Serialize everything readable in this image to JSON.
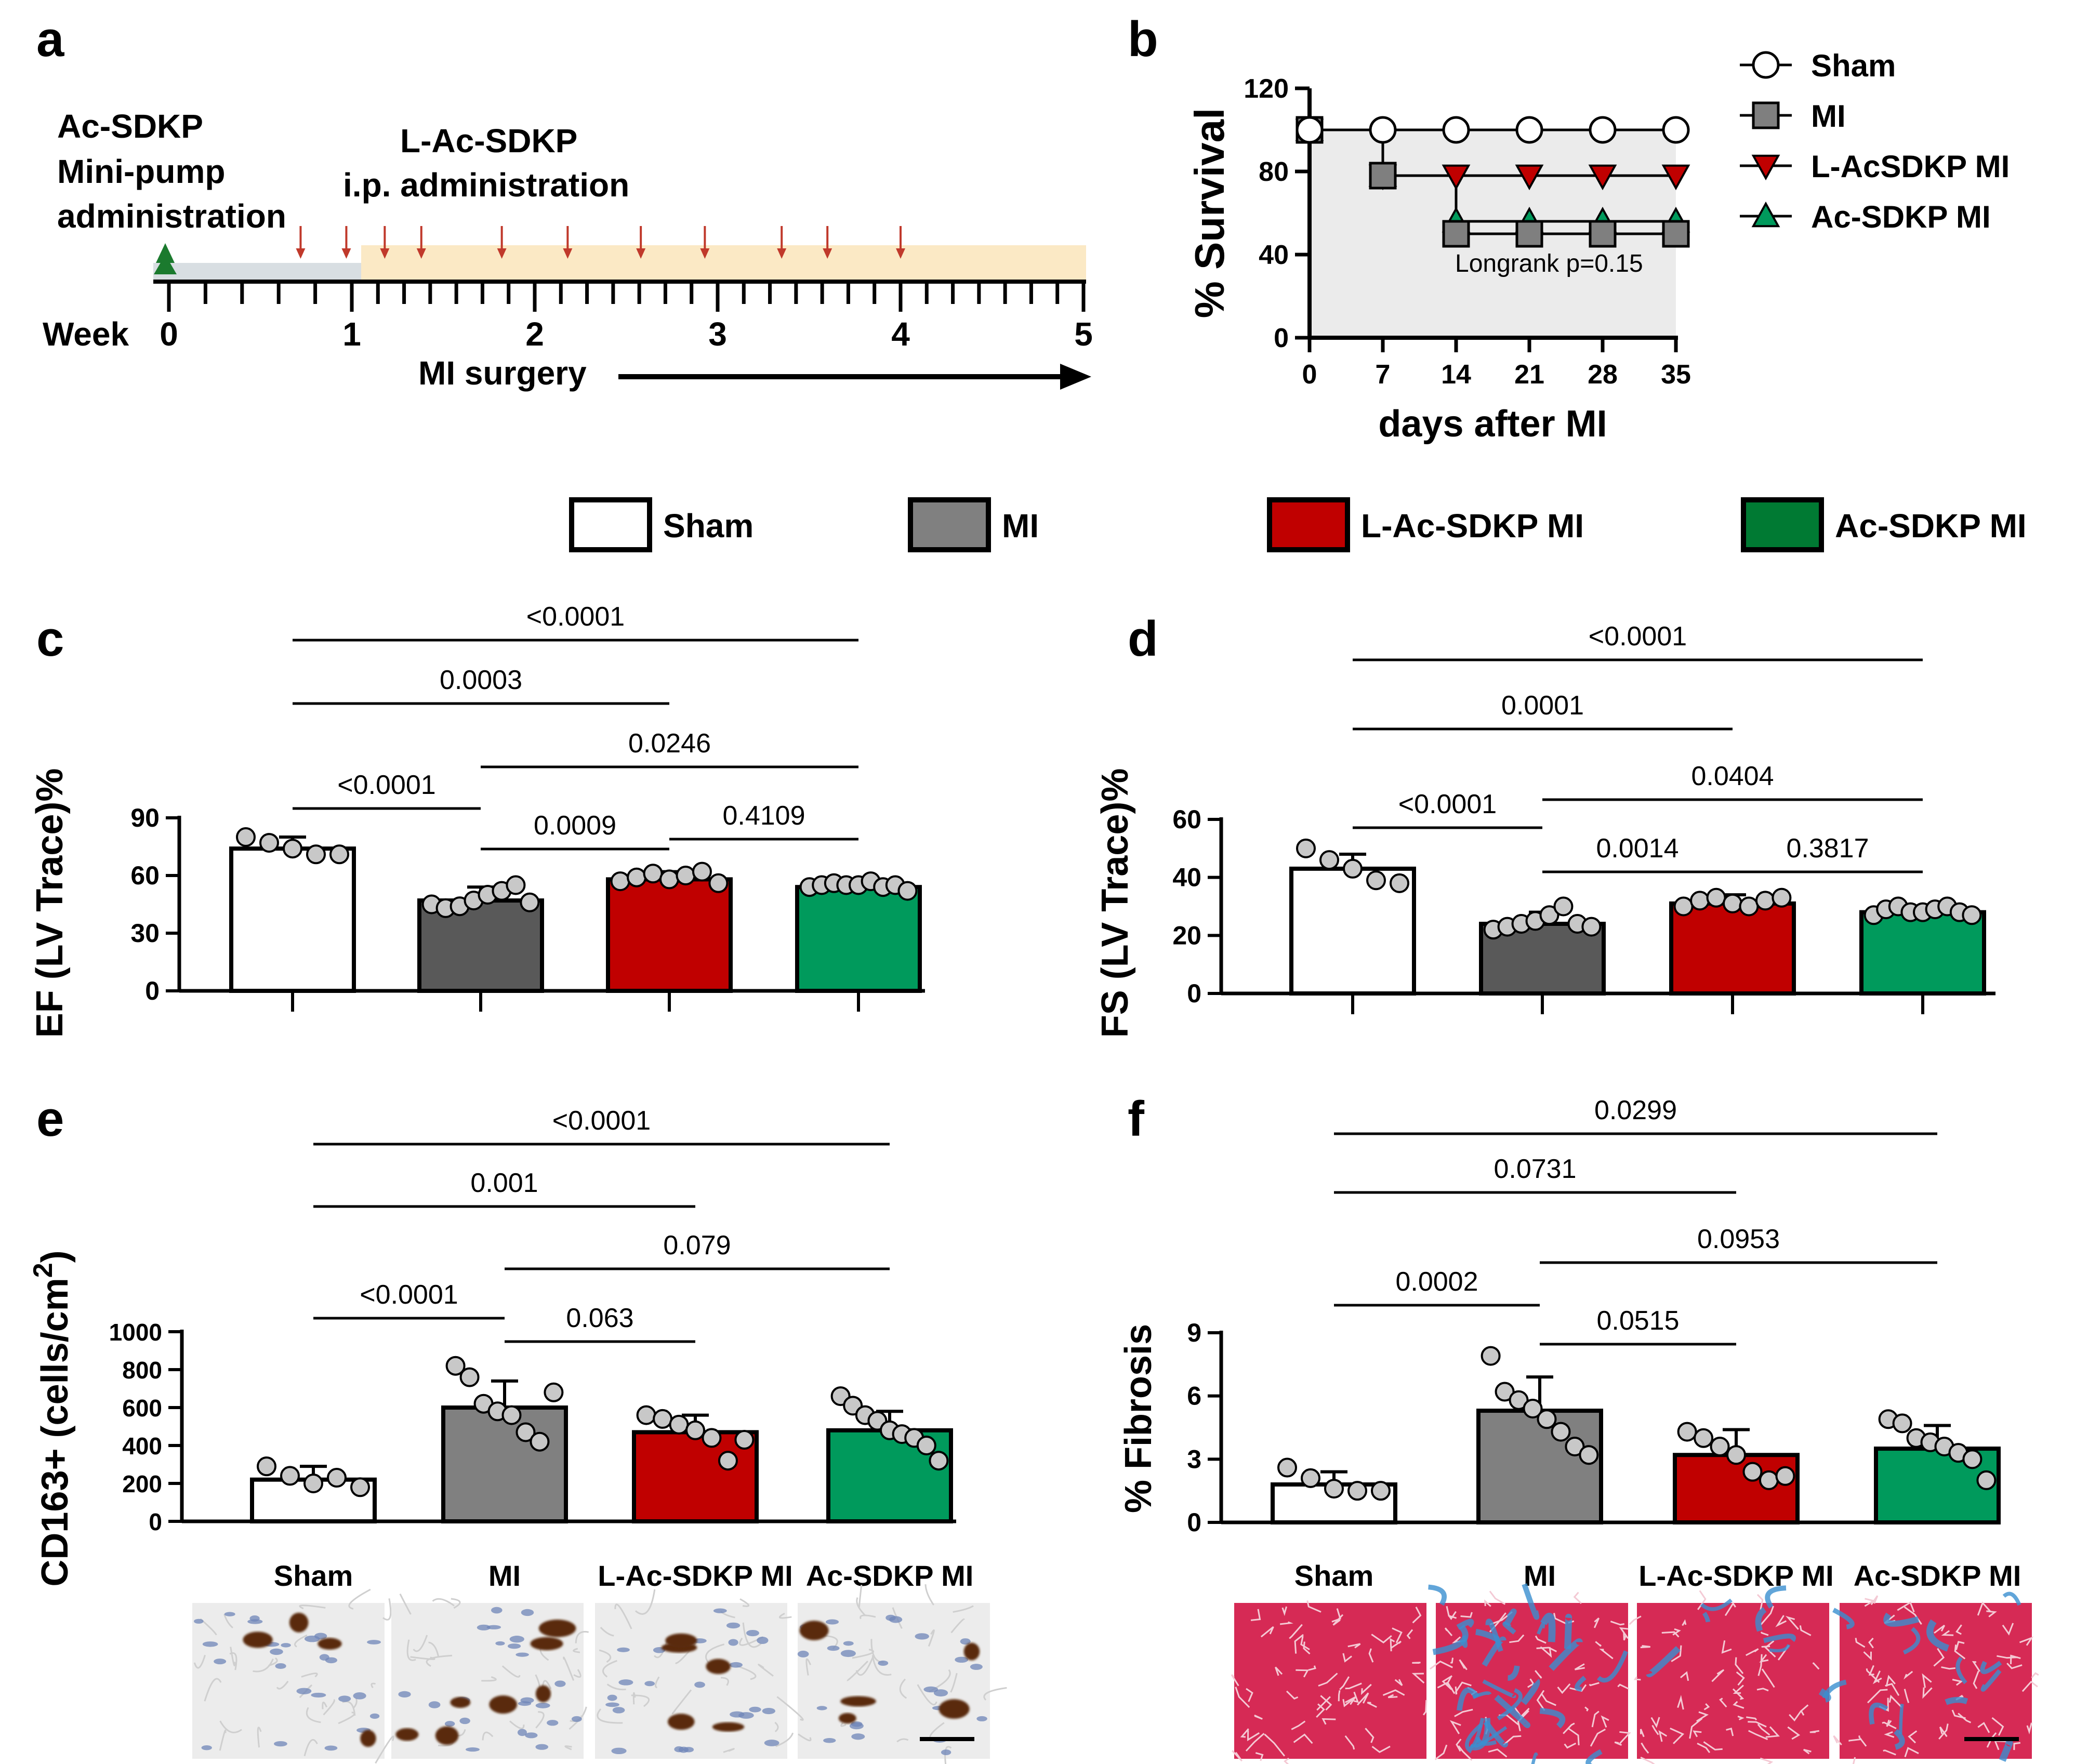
{
  "panel_letters": [
    "a",
    "b",
    "c",
    "d",
    "e",
    "f"
  ],
  "colors": {
    "sham": "#ffffff",
    "mi_c": "#595959",
    "mi_e": "#808080",
    "lac": "#c00000",
    "ac": "#009a5c",
    "ac_legend": "#007a33",
    "timeline_track": "#d8dee2",
    "timeline_ip": "#fbe9c5",
    "arrow": "#c0392b",
    "pump": "#1b7a2e"
  },
  "legend": {
    "items": [
      {
        "key": "sham",
        "label": "Sham"
      },
      {
        "key": "mi",
        "label": "MI"
      },
      {
        "key": "lac",
        "label": "L-Ac-SDKP MI"
      },
      {
        "key": "ac",
        "label": "Ac-SDKP MI"
      }
    ]
  },
  "timeline": {
    "pump_label": [
      "Ac-SDKP",
      "Mini-pump",
      "administration"
    ],
    "ip_label": [
      "L-Ac-SDKP",
      "i.p. administration"
    ],
    "week_label": "Week",
    "weeks": [
      "0",
      "1",
      "2",
      "3",
      "4",
      "5"
    ],
    "surgery_label": "MI surgery",
    "injection_weeks": [
      0.72,
      0.97,
      1.18,
      1.38,
      1.82,
      2.18,
      2.58,
      2.93,
      3.35,
      3.6,
      4.0
    ]
  },
  "chart_data": [
    {
      "panel": "b",
      "type": "line",
      "ylabel": "% Survival",
      "xlabel": "days after MI",
      "x": [
        0,
        7,
        14,
        21,
        28,
        35
      ],
      "yticks": [
        0,
        40,
        80,
        120
      ],
      "ylim": [
        0,
        120
      ],
      "series": [
        {
          "name": "Sham",
          "key": "sham",
          "marker": "circle",
          "values": [
            100,
            100,
            100,
            100,
            100,
            100
          ]
        },
        {
          "name": "MI",
          "key": "mi",
          "marker": "square",
          "values": [
            100,
            78,
            50,
            50,
            50,
            50
          ]
        },
        {
          "name": "L-AcSDKP MI",
          "key": "lac",
          "marker": "triangle-down",
          "values": [
            100,
            78,
            78,
            78,
            78,
            78
          ]
        },
        {
          "name": "Ac-SDKP MI",
          "key": "ac",
          "marker": "triangle-up",
          "values": [
            100,
            78,
            56,
            56,
            56,
            56
          ]
        }
      ],
      "annotation": "Longrank p=0.15"
    },
    {
      "panel": "c",
      "type": "bar",
      "ylabel": "EF (LV Trace)%",
      "yticks": [
        0,
        30,
        60,
        90
      ],
      "ylim": [
        0,
        90
      ],
      "categories": [
        "Sham",
        "MI",
        "L-Ac-SDKP MI",
        "Ac-SDKP MI"
      ],
      "values": [
        74,
        47,
        58,
        54
      ],
      "sd": [
        6,
        7,
        4,
        4
      ],
      "points": [
        [
          80,
          77,
          74,
          71,
          71
        ],
        [
          45,
          43,
          44,
          47,
          50,
          52,
          55,
          46
        ],
        [
          57,
          59,
          61,
          58,
          60,
          62,
          56
        ],
        [
          54,
          55,
          56,
          55,
          55,
          57,
          54,
          55,
          52
        ]
      ],
      "comparisons": [
        {
          "a": 0,
          "b": 1,
          "label": "<0.0001"
        },
        {
          "a": 1,
          "b": 2,
          "label": "0.0009"
        },
        {
          "a": 2,
          "b": 3,
          "label": "0.4109"
        },
        {
          "a": 1,
          "b": 3,
          "label": "0.0246"
        },
        {
          "a": 0,
          "b": 2,
          "label": "0.0003"
        },
        {
          "a": 0,
          "b": 3,
          "label": "<0.0001"
        }
      ]
    },
    {
      "panel": "d",
      "type": "bar",
      "ylabel": "FS (LV Trace)%",
      "yticks": [
        0,
        20,
        40,
        60
      ],
      "ylim": [
        0,
        60
      ],
      "categories": [
        "Sham",
        "MI",
        "L-Ac-SDKP MI",
        "Ac-SDKP MI"
      ],
      "values": [
        43,
        24,
        31,
        28
      ],
      "sd": [
        5,
        4,
        3,
        2
      ],
      "points": [
        [
          50,
          46,
          43,
          39,
          38
        ],
        [
          22,
          23,
          24,
          25,
          27,
          30,
          24,
          23
        ],
        [
          30,
          32,
          33,
          31,
          30,
          32,
          33
        ],
        [
          27,
          29,
          30,
          28,
          28,
          29,
          30,
          28,
          27
        ]
      ],
      "comparisons": [
        {
          "a": 0,
          "b": 1,
          "label": "<0.0001"
        },
        {
          "a": 1,
          "b": 2,
          "label": "0.0014"
        },
        {
          "a": 2,
          "b": 3,
          "label": "0.3817"
        },
        {
          "a": 1,
          "b": 3,
          "label": "0.0404"
        },
        {
          "a": 0,
          "b": 2,
          "label": "0.0001"
        },
        {
          "a": 0,
          "b": 3,
          "label": "<0.0001"
        }
      ]
    },
    {
      "panel": "e",
      "type": "bar",
      "ylabel": "CD163+ (cells/cm",
      "ylabel_sup": "2",
      "ylabel_close": ")",
      "yticks": [
        0,
        200,
        400,
        600,
        800,
        1000
      ],
      "ylim": [
        0,
        1000
      ],
      "categories": [
        "Sham",
        "MI",
        "L-Ac-SDKP MI",
        "Ac-SDKP MI"
      ],
      "values": [
        220,
        600,
        470,
        480
      ],
      "sd": [
        70,
        140,
        90,
        100
      ],
      "points": [
        [
          290,
          240,
          200,
          230,
          180
        ],
        [
          820,
          760,
          620,
          580,
          560,
          470,
          420,
          680
        ],
        [
          560,
          540,
          510,
          480,
          440,
          320,
          430
        ],
        [
          660,
          610,
          560,
          530,
          480,
          460,
          440,
          400,
          320
        ]
      ],
      "comparisons": [
        {
          "a": 0,
          "b": 1,
          "label": "<0.0001"
        },
        {
          "a": 1,
          "b": 2,
          "label": "0.063"
        },
        {
          "a": 1,
          "b": 3,
          "label": "0.079"
        },
        {
          "a": 0,
          "b": 2,
          "label": "0.001"
        },
        {
          "a": 0,
          "b": 3,
          "label": "<0.0001"
        }
      ]
    },
    {
      "panel": "f",
      "type": "bar",
      "ylabel": "% Fibrosis",
      "yticks": [
        0,
        3,
        6,
        9
      ],
      "ylim": [
        0,
        9
      ],
      "categories": [
        "Sham",
        "MI",
        "L-Ac-SDKP MI",
        "Ac-SDKP MI"
      ],
      "values": [
        1.8,
        5.3,
        3.2,
        3.5
      ],
      "sd": [
        0.6,
        1.6,
        1.2,
        1.1
      ],
      "points": [
        [
          2.6,
          2.1,
          1.6,
          1.5,
          1.5
        ],
        [
          7.9,
          6.2,
          5.8,
          5.4,
          4.9,
          4.3,
          3.6,
          3.2
        ],
        [
          4.3,
          4.0,
          3.6,
          3.2,
          2.4,
          2.0,
          2.2
        ],
        [
          4.9,
          4.7,
          4.0,
          3.8,
          3.6,
          3.3,
          3.0,
          2.0
        ]
      ],
      "comparisons": [
        {
          "a": 0,
          "b": 1,
          "label": "0.0002"
        },
        {
          "a": 1,
          "b": 2,
          "label": "0.0515"
        },
        {
          "a": 1,
          "b": 3,
          "label": "0.0953"
        },
        {
          "a": 0,
          "b": 2,
          "label": "0.0731"
        },
        {
          "a": 0,
          "b": 3,
          "label": "0.0299"
        }
      ]
    }
  ]
}
